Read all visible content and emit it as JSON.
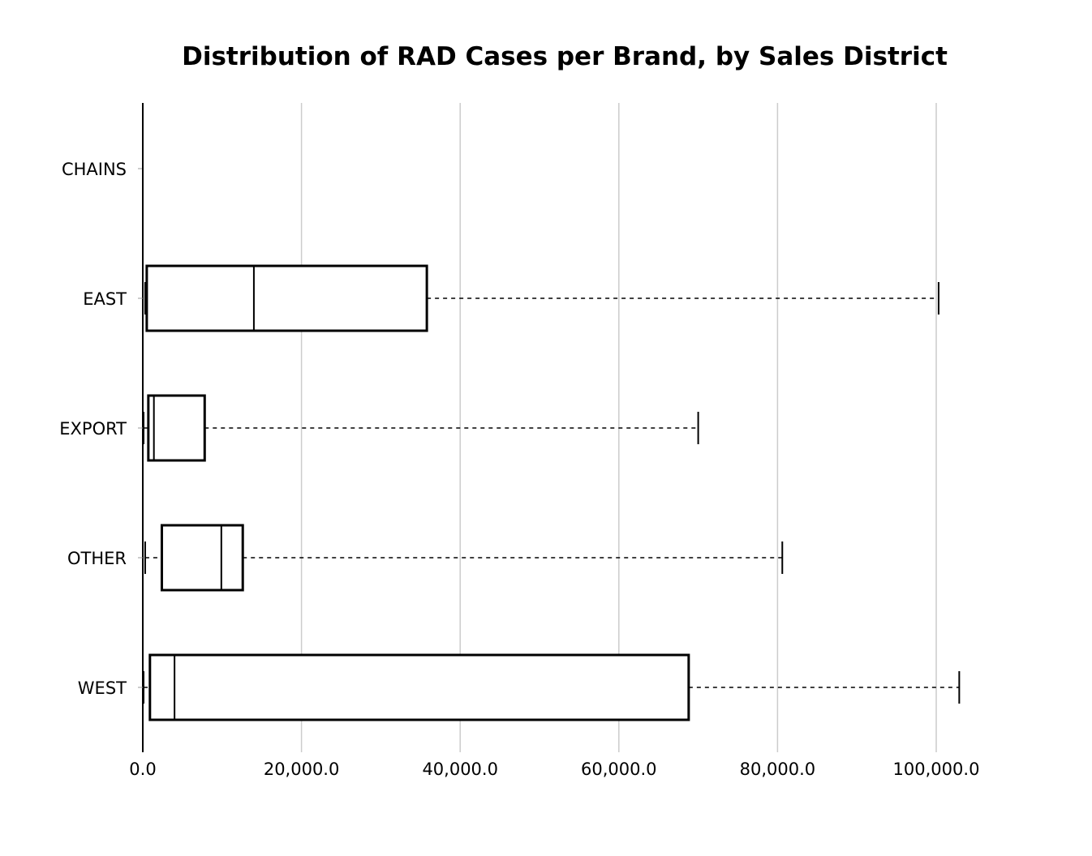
{
  "chart_data": {
    "type": "boxplot",
    "orientation": "horizontal",
    "title": "Distribution of RAD Cases per Brand, by Sales District",
    "xlabel": "",
    "ylabel": "",
    "xlim": [
      0,
      105000
    ],
    "x_ticks": [
      0,
      20000,
      40000,
      60000,
      80000,
      100000
    ],
    "x_tick_labels": [
      "0.0",
      "20,000.0",
      "40,000.0",
      "60,000.0",
      "80,000.0",
      "100,000.0"
    ],
    "grid": "vertical",
    "categories": [
      "CHAINS",
      "EAST",
      "EXPORT",
      "OTHER",
      "WEST"
    ],
    "boxes": [
      {
        "category": "CHAINS",
        "whisker_low": 0,
        "q1": 0,
        "median": 0,
        "q3": 0,
        "whisker_high": 0
      },
      {
        "category": "EAST",
        "whisker_low": 300,
        "q1": 500,
        "median": 14000,
        "q3": 35800,
        "whisker_high": 100300
      },
      {
        "category": "EXPORT",
        "whisker_low": 100,
        "q1": 700,
        "median": 1400,
        "q3": 7800,
        "whisker_high": 70000
      },
      {
        "category": "OTHER",
        "whisker_low": 300,
        "q1": 2400,
        "median": 9900,
        "q3": 12600,
        "whisker_high": 80600
      },
      {
        "category": "WEST",
        "whisker_low": 100,
        "q1": 900,
        "median": 4000,
        "q3": 68800,
        "whisker_high": 102900
      }
    ],
    "colors": {
      "box_stroke": "#000000",
      "box_fill": "#ffffff",
      "grid": "#cccccc"
    }
  }
}
